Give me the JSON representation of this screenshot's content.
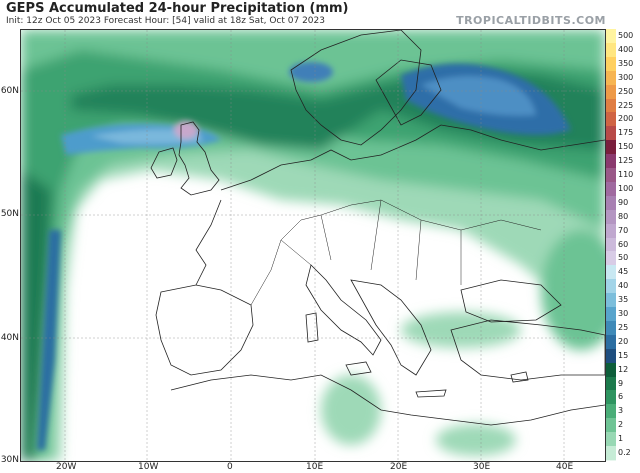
{
  "header": {
    "title": "GEPS Accumulated 24-hour Precipitation (mm)",
    "subtitle": "Init: 12z Oct 05 2023   Forecast Hour: [54]   valid at 18z Sat, Oct 07 2023",
    "credit": "TROPICALTIDBITS.COM"
  },
  "axes": {
    "lat_labels": [
      "60N",
      "50N",
      "40N",
      "30N"
    ],
    "lon_labels": [
      "20W",
      "10W",
      "0",
      "10E",
      "20E",
      "30E",
      "40E"
    ]
  },
  "legend": {
    "items": [
      {
        "label": "500",
        "color": "#fff4a0"
      },
      {
        "label": "400",
        "color": "#ffe680"
      },
      {
        "label": "350",
        "color": "#ffd060"
      },
      {
        "label": "300",
        "color": "#f7b552"
      },
      {
        "label": "250",
        "color": "#ee9a48"
      },
      {
        "label": "225",
        "color": "#e07e44"
      },
      {
        "label": "200",
        "color": "#d06444"
      },
      {
        "label": "175",
        "color": "#b84a48"
      },
      {
        "label": "150",
        "color": "#7a1f3d"
      },
      {
        "label": "125",
        "color": "#8a3a6e"
      },
      {
        "label": "110",
        "color": "#9a5888"
      },
      {
        "label": "100",
        "color": "#a06aa0"
      },
      {
        "label": "90",
        "color": "#a880b2"
      },
      {
        "label": "80",
        "color": "#b496c2"
      },
      {
        "label": "70",
        "color": "#c0a8cf"
      },
      {
        "label": "60",
        "color": "#ccbadb"
      },
      {
        "label": "50",
        "color": "#d8cce6"
      },
      {
        "label": "45",
        "color": "#c8e8f2"
      },
      {
        "label": "40",
        "color": "#a2d4e8"
      },
      {
        "label": "35",
        "color": "#7cbedb"
      },
      {
        "label": "30",
        "color": "#58a4cc"
      },
      {
        "label": "25",
        "color": "#3f8ab8"
      },
      {
        "label": "20",
        "color": "#2c6ea2"
      },
      {
        "label": "15",
        "color": "#1f4f80"
      },
      {
        "label": "12",
        "color": "#0d5e3a"
      },
      {
        "label": "9",
        "color": "#1c7a4c"
      },
      {
        "label": "6",
        "color": "#2e9460"
      },
      {
        "label": "3",
        "color": "#4aad78"
      },
      {
        "label": "2",
        "color": "#6fc495"
      },
      {
        "label": "1",
        "color": "#98d8b4"
      },
      {
        "label": "0.2",
        "color": "#c6ecd6"
      }
    ]
  }
}
